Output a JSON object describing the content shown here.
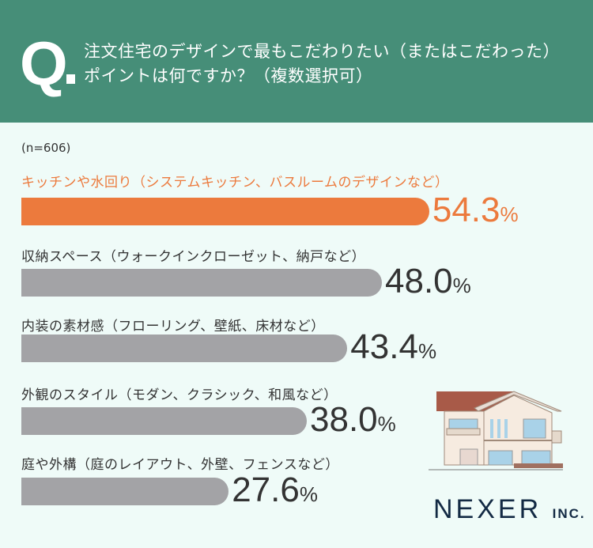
{
  "header": {
    "q_mark": "Q",
    "question_line1": "注文住宅のデザインで最もこだわりたい（またはこだわった）",
    "question_line2": "ポイントは何ですか？（複数選択可）"
  },
  "sample": "(n=606)",
  "chart_data": {
    "type": "bar",
    "orientation": "horizontal",
    "categories": [
      "キッチンや水回り（システムキッチン、バスルームのデザインなど）",
      "収納スペース（ウォークインクローゼット、納戸など）",
      "内装の素材感（フローリング、壁紙、床材など）",
      "外観のスタイル（モダン、クラシック、和風など）",
      "庭や外構（庭のレイアウト、外壁、フェンスなど）"
    ],
    "values": [
      54.3,
      48.0,
      43.4,
      38.0,
      27.6
    ],
    "value_labels": [
      "54.3",
      "48.0",
      "43.4",
      "38.0",
      "27.6"
    ],
    "unit": "%",
    "colors": {
      "highlight": "#ec7a3d",
      "default": "#a3a3a6"
    },
    "highlight_index": 0
  },
  "logo": {
    "name": "NEXER",
    "suffix": "INC."
  }
}
